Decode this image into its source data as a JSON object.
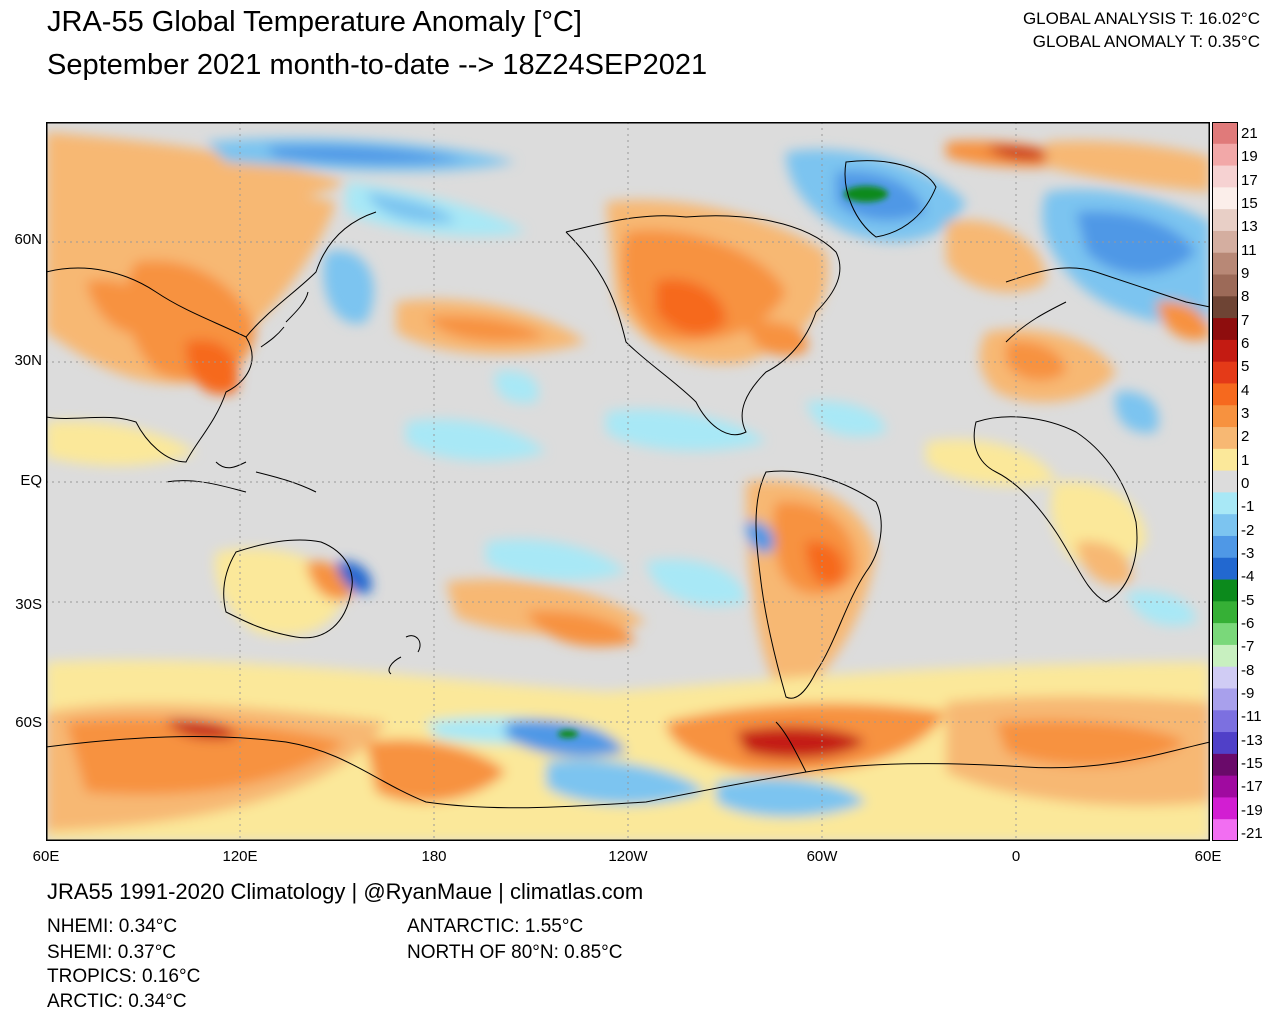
{
  "title": {
    "line1": "JRA-55 Global Temperature Anomaly [°C]",
    "line2": "September 2021 month-to-date --> 18Z24SEP2021"
  },
  "summary": {
    "global_analysis": "GLOBAL ANALYSIS T: 16.02°C",
    "global_anomaly": "GLOBAL ANOMALY T: 0.35°C"
  },
  "axes": {
    "lat_labels": [
      "60N",
      "30N",
      "EQ",
      "30S",
      "60S"
    ],
    "lon_labels": [
      "60E",
      "120E",
      "180",
      "120W",
      "60W",
      "0",
      "60E"
    ]
  },
  "colorbar": {
    "labels": [
      "21",
      "19",
      "17",
      "15",
      "13",
      "11",
      "9",
      "8",
      "7",
      "6",
      "5",
      "4",
      "3",
      "2",
      "1",
      "0",
      "-1",
      "-2",
      "-3",
      "-4",
      "-5",
      "-6",
      "-7",
      "-8",
      "-9",
      "-11",
      "-13",
      "-15",
      "-17",
      "-19",
      "-21"
    ],
    "colors": [
      "#e07a7a",
      "#f2a8a8",
      "#f6d2d2",
      "#fbeeea",
      "#e8cfc6",
      "#d4aea0",
      "#b88876",
      "#9c6a58",
      "#6e4434",
      "#8e0d0d",
      "#c41b12",
      "#e43a18",
      "#f6691e",
      "#f7923f",
      "#f7b873",
      "#fbe89a",
      "#dcdcdc",
      "#a8e8f6",
      "#7cc4f0",
      "#4f98e6",
      "#2268d0",
      "#0c8a1c",
      "#36b036",
      "#7ad87a",
      "#c8f0c0",
      "#d0ccf4",
      "#a8a0ec",
      "#7c70e0",
      "#5040c8",
      "#6a0a6a",
      "#a00aa0",
      "#d21ed2",
      "#f26ef2"
    ]
  },
  "credit": "JRA55 1991-2020 Climatology | @RyanMaue | climatlas.com",
  "regional_stats": {
    "nhemi": "NHEMI: 0.34°C",
    "shemi": "SHEMI: 0.37°C",
    "tropics": "TROPICS: 0.16°C",
    "arctic": "ARCTIC: 0.34°C",
    "antarctic": "ANTARCTIC: 1.55°C",
    "north_of_80": "NORTH OF 80°N: 0.85°C"
  }
}
